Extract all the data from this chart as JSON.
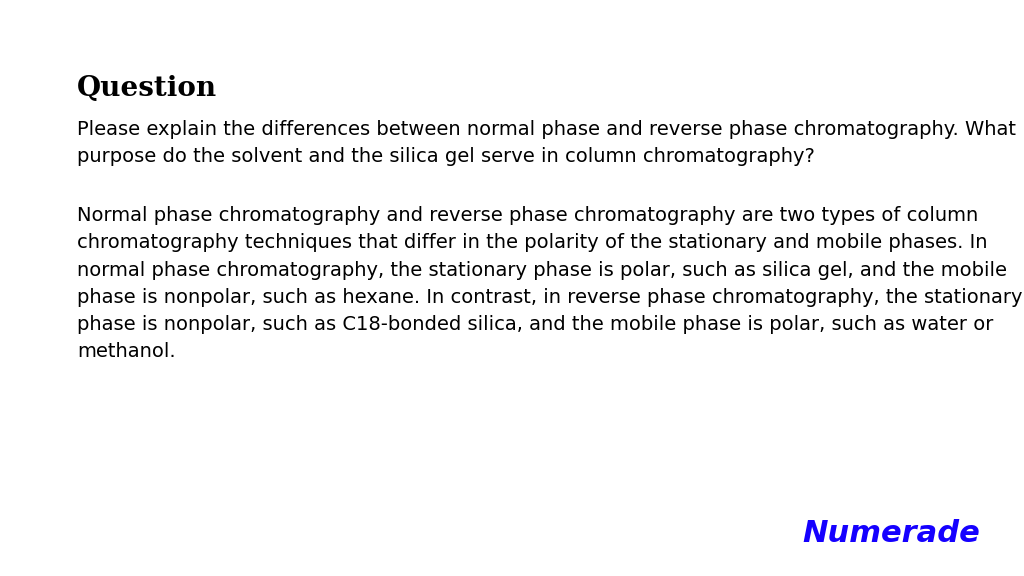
{
  "background_color": "#ffffff",
  "title": "Question",
  "title_fontsize": 20,
  "question_text": "Please explain the differences between normal phase and reverse phase chromatography. What\npurpose do the solvent and the silica gel serve in column chromatography?",
  "question_fontsize": 14,
  "answer_text": "Normal phase chromatography and reverse phase chromatography are two types of column\nchromatography techniques that differ in the polarity of the stationary and mobile phases. In\nnormal phase chromatography, the stationary phase is polar, such as silica gel, and the mobile\nphase is nonpolar, such as hexane. In contrast, in reverse phase chromatography, the stationary\nphase is nonpolar, such as C18-bonded silica, and the mobile phase is polar, such as water or\nmethanol.",
  "answer_fontsize": 14,
  "logo_text": "Numerade",
  "logo_fontsize": 22,
  "logo_color": "#1500ff"
}
